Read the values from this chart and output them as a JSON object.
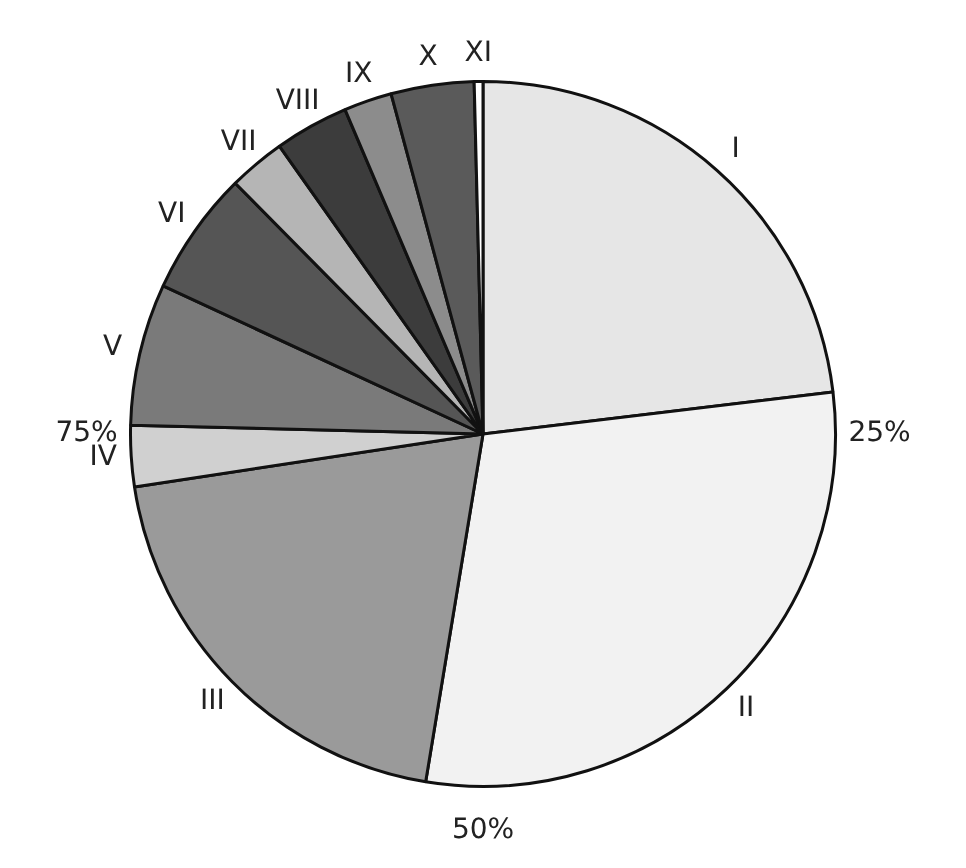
{
  "chart_data": {
    "type": "pie",
    "categories": [
      "I",
      "II",
      "III",
      "IV",
      "V",
      "VI",
      "VII",
      "VIII",
      "IX",
      "X",
      "XI"
    ],
    "values": [
      23.1,
      29.5,
      20,
      2.8,
      6.5,
      5.7,
      2.6,
      3.4,
      2.2,
      3.8,
      0.4
    ],
    "colors": [
      "#e6e6e6",
      "#f2f2f2",
      "#9a9a9a",
      "#d0d0d0",
      "#7a7a7a",
      "#555555",
      "#b5b5b5",
      "#3c3c3c",
      "#8c8c8c",
      "#5a5a5a",
      "#ffffff"
    ],
    "annotations": [
      "25%",
      "50%",
      "75%"
    ],
    "legend": false
  }
}
